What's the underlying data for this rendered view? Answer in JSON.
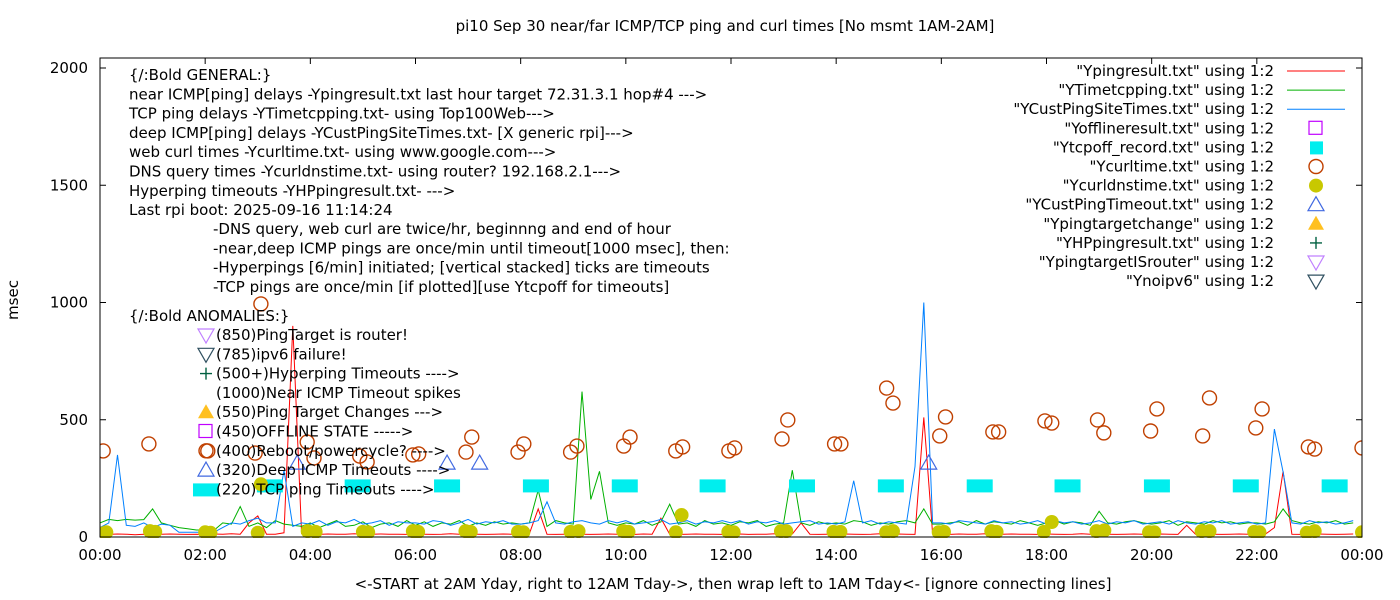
{
  "chart_data": {
    "type": "line",
    "title": "pi10 Sep 30  near/far ICMP/TCP ping and curl times [No msmt 1AM-2AM]",
    "xlabel": "<-START at 2AM Yday, right to 12AM Tday->, then wrap left to 1AM Tday<- [ignore connecting lines]",
    "ylabel": "msec",
    "xlim_hours": [
      0,
      24
    ],
    "ylim": [
      0,
      2000
    ],
    "x_tick_labels": [
      "00:00",
      "02:00",
      "04:00",
      "06:00",
      "08:00",
      "10:00",
      "12:00",
      "14:00",
      "16:00",
      "18:00",
      "20:00",
      "22:00",
      "00:00"
    ],
    "y_tick_labels": [
      "0",
      "500",
      "1000",
      "1500",
      "2000"
    ],
    "grid": false,
    "legend_placement": "top-right",
    "line_time_step_minutes": 10,
    "series": [
      {
        "name": "\"Ypingresult.txt\" using 1:2",
        "kind": "line",
        "color": "#ff0000",
        "values": [
          12,
          11,
          13,
          12,
          10,
          12,
          11,
          12,
          13,
          12,
          11,
          12,
          11,
          13,
          12,
          14,
          12,
          60,
          90,
          12,
          12,
          18,
          900,
          15,
          12,
          11,
          13,
          12,
          12,
          14,
          11,
          12,
          13,
          12,
          12,
          11,
          13,
          12,
          11,
          12,
          14,
          12,
          13,
          12,
          11,
          12,
          13,
          12,
          12,
          14,
          120,
          12,
          11,
          12,
          13,
          12,
          11,
          12,
          13,
          12,
          12,
          11,
          13,
          12,
          80,
          12,
          11,
          12,
          13,
          12,
          12,
          11,
          12,
          13,
          11,
          12,
          12,
          14,
          12,
          13,
          60,
          12,
          11,
          12,
          12,
          13,
          12,
          11,
          12,
          14,
          12,
          13,
          12,
          11,
          510,
          14,
          12,
          11,
          13,
          12,
          12,
          14,
          11,
          12,
          13,
          12,
          12,
          11,
          13,
          12,
          11,
          12,
          14,
          12,
          13,
          12,
          11,
          12,
          13,
          12,
          12,
          13,
          12,
          11,
          50,
          12,
          13,
          12,
          11,
          12,
          13,
          12,
          12,
          13,
          40,
          280,
          12,
          11,
          12,
          13,
          12,
          11,
          12,
          13
        ]
      },
      {
        "name": "\"YTimetcpping.txt\" using 1:2",
        "kind": "line",
        "color": "#00b000",
        "values": [
          60,
          75,
          70,
          75,
          72,
          74,
          120,
          60,
          50,
          40,
          35,
          30,
          30,
          28,
          60,
          55,
          130,
          45,
          60,
          40,
          70,
          55,
          50,
          45,
          60,
          40,
          55,
          70,
          45,
          50,
          65,
          40,
          55,
          60,
          45,
          70,
          50,
          65,
          45,
          60,
          55,
          70,
          45,
          60,
          50,
          65,
          55,
          60,
          55,
          60,
          200,
          45,
          70,
          60,
          55,
          620,
          160,
          280,
          60,
          50,
          60,
          55,
          70,
          50,
          65,
          140,
          55,
          60,
          45,
          70,
          55,
          60,
          50,
          65,
          60,
          70,
          45,
          55,
          60,
          285,
          60,
          50,
          65,
          55,
          60,
          55,
          70,
          65,
          50,
          60,
          55,
          65,
          70,
          60,
          120,
          55,
          55,
          60,
          65,
          50,
          70,
          55,
          65,
          60,
          55,
          70,
          60,
          50,
          60,
          70,
          55,
          65,
          60,
          50,
          110,
          60,
          55,
          65,
          70,
          60,
          55,
          60,
          70,
          50,
          65,
          60,
          55,
          70,
          60,
          65,
          55,
          60,
          60,
          55,
          65,
          120,
          70,
          60,
          55,
          65,
          60,
          70,
          55,
          60
        ]
      },
      {
        "name": "\"YCustPingSiteTimes.txt\" using 1:2",
        "kind": "line",
        "color": "#0080ff",
        "values": [
          40,
          60,
          350,
          50,
          45,
          60,
          40,
          55,
          50,
          20,
          20,
          20,
          20,
          20,
          40,
          60,
          55,
          70,
          80,
          60,
          60,
          285,
          45,
          60,
          55,
          70,
          50,
          65,
          60,
          75,
          55,
          60,
          70,
          50,
          65,
          60,
          60,
          55,
          70,
          65,
          50,
          60,
          75,
          55,
          65,
          60,
          70,
          55,
          55,
          60,
          70,
          150,
          60,
          55,
          65,
          70,
          60,
          55,
          70,
          60,
          70,
          55,
          60,
          65,
          75,
          55,
          60,
          70,
          55,
          65,
          60,
          70,
          60,
          70,
          55,
          65,
          60,
          70,
          55,
          60,
          65,
          70,
          55,
          60,
          55,
          65,
          240,
          60,
          70,
          55,
          65,
          60,
          55,
          300,
          1000,
          60,
          60,
          55,
          70,
          65,
          60,
          55,
          70,
          60,
          65,
          55,
          60,
          70,
          55,
          70,
          60,
          65,
          55,
          60,
          70,
          55,
          65,
          60,
          70,
          55,
          60,
          65,
          55,
          70,
          60,
          55,
          65,
          60,
          70,
          55,
          60,
          65,
          55,
          60,
          460,
          277,
          60,
          55,
          70,
          60,
          65,
          55,
          60,
          70
        ]
      },
      {
        "name": "\"Yofflineresult.txt\" using 1:2",
        "kind": "points",
        "marker": "open-square",
        "color": "#c000ff",
        "points": []
      },
      {
        "name": "\"Ytcpoff_record.txt\" using 1:2",
        "kind": "points",
        "marker": "filled-square",
        "color": "#00eeee",
        "points": [
          [
            3.23,
            220
          ],
          [
            4.9,
            220
          ],
          [
            6.6,
            220
          ],
          [
            8.29,
            220
          ],
          [
            9.98,
            220
          ],
          [
            11.65,
            220
          ],
          [
            13.35,
            220
          ],
          [
            15.04,
            220
          ],
          [
            16.73,
            220
          ],
          [
            18.4,
            220
          ],
          [
            20.1,
            220
          ],
          [
            21.79,
            220
          ],
          [
            23.48,
            220
          ]
        ]
      },
      {
        "name": "\"Ycurltime.txt\" using 1:2",
        "kind": "points",
        "marker": "open-circle",
        "color": "#c04000",
        "points": [
          [
            0.06,
            367
          ],
          [
            0.93,
            397
          ],
          [
            2.05,
            367
          ],
          [
            2.95,
            358
          ],
          [
            3.06,
            994
          ],
          [
            3.94,
            405
          ],
          [
            4.07,
            337
          ],
          [
            4.94,
            345
          ],
          [
            5.08,
            320
          ],
          [
            5.95,
            350
          ],
          [
            6.06,
            354
          ],
          [
            6.96,
            362
          ],
          [
            7.07,
            426
          ],
          [
            7.95,
            362
          ],
          [
            8.06,
            397
          ],
          [
            8.95,
            362
          ],
          [
            9.07,
            388
          ],
          [
            9.96,
            388
          ],
          [
            10.08,
            426
          ],
          [
            10.95,
            367
          ],
          [
            11.08,
            384
          ],
          [
            11.96,
            367
          ],
          [
            12.07,
            380
          ],
          [
            12.97,
            418
          ],
          [
            13.08,
            499
          ],
          [
            13.97,
            397
          ],
          [
            14.09,
            397
          ],
          [
            14.96,
            635
          ],
          [
            15.08,
            571
          ],
          [
            15.97,
            431
          ],
          [
            16.08,
            512
          ],
          [
            16.98,
            448
          ],
          [
            17.09,
            448
          ],
          [
            17.97,
            495
          ],
          [
            18.1,
            486
          ],
          [
            18.97,
            499
          ],
          [
            19.09,
            444
          ],
          [
            19.98,
            452
          ],
          [
            20.1,
            546
          ],
          [
            20.97,
            431
          ],
          [
            21.1,
            593
          ],
          [
            21.98,
            465
          ],
          [
            22.1,
            546
          ],
          [
            22.98,
            384
          ],
          [
            23.1,
            375
          ],
          [
            24.0,
            380
          ]
        ]
      },
      {
        "name": "\"Ycurldnstime.txt\" using 1:2",
        "kind": "points",
        "marker": "filled-circle",
        "color": "#c8c800",
        "points": [
          [
            0.05,
            15
          ],
          [
            0.12,
            20
          ],
          [
            0.95,
            25
          ],
          [
            1.05,
            22
          ],
          [
            2.0,
            20
          ],
          [
            2.1,
            18
          ],
          [
            3.0,
            18
          ],
          [
            3.06,
            225
          ],
          [
            3.95,
            25
          ],
          [
            4.1,
            22
          ],
          [
            5.0,
            22
          ],
          [
            5.1,
            20
          ],
          [
            5.95,
            25
          ],
          [
            6.05,
            22
          ],
          [
            6.95,
            25
          ],
          [
            7.05,
            22
          ],
          [
            7.95,
            22
          ],
          [
            8.05,
            20
          ],
          [
            8.95,
            22
          ],
          [
            9.1,
            25
          ],
          [
            9.95,
            25
          ],
          [
            10.05,
            22
          ],
          [
            10.95,
            20
          ],
          [
            11.06,
            94
          ],
          [
            11.95,
            22
          ],
          [
            12.05,
            20
          ],
          [
            12.95,
            25
          ],
          [
            13.05,
            25
          ],
          [
            13.95,
            22
          ],
          [
            14.08,
            22
          ],
          [
            14.95,
            20
          ],
          [
            15.08,
            25
          ],
          [
            15.95,
            20
          ],
          [
            16.05,
            22
          ],
          [
            16.95,
            25
          ],
          [
            17.05,
            22
          ],
          [
            17.95,
            22
          ],
          [
            18.1,
            64
          ],
          [
            18.95,
            25
          ],
          [
            19.1,
            28
          ],
          [
            19.95,
            20
          ],
          [
            20.05,
            20
          ],
          [
            20.95,
            25
          ],
          [
            21.1,
            25
          ],
          [
            21.95,
            22
          ],
          [
            22.05,
            20
          ],
          [
            22.95,
            18
          ],
          [
            23.1,
            25
          ],
          [
            24.0,
            20
          ]
        ]
      },
      {
        "name": "\"YCustPingTimeout.txt\" using 1:2",
        "kind": "points",
        "marker": "open-triangle-up",
        "color": "#4169e1",
        "points": [
          [
            3.75,
            315
          ],
          [
            6.6,
            315
          ],
          [
            7.22,
            315
          ],
          [
            15.76,
            315
          ]
        ]
      },
      {
        "name": "\"Ypingtargetchange\" using 1:2",
        "kind": "points",
        "marker": "filled-triangle-up",
        "color": "#ffc020",
        "points": []
      },
      {
        "name": "\"YHPpingresult.txt\" using 1:2",
        "kind": "points",
        "marker": "plus",
        "color": "#006040",
        "points": []
      },
      {
        "name": "\"YpingtargetISrouter\" using 1:2",
        "kind": "points",
        "marker": "open-triangle-down",
        "color": "#c080ff",
        "points": []
      },
      {
        "name": "\"Ynoipv6\" using 1:2",
        "kind": "points",
        "marker": "open-triangle-down",
        "color": "#305060",
        "points": []
      }
    ],
    "annotations": {
      "general": [
        "{/:Bold GENERAL:}",
        "near ICMP[ping] delays -Ypingresult.txt last hour target 72.31.3.1 hop#4 --->",
        "TCP ping delays -YTimetcpping.txt- using Top100Web--->",
        "deep ICMP[ping] delays -YCustPingSiteTimes.txt- [X generic rpi]--->",
        "web curl times -Ycurltime.txt- using www.google.com--->",
        "DNS query times -Ycurldnstime.txt- using router? 192.168.2.1--->",
        "Hyperping timeouts -YHPpingresult.txt- --->",
        "Last rpi boot: 2025-09-16 11:14:24"
      ],
      "notes": [
        "-DNS query, web curl are twice/hr, beginnng and end of hour",
        "-near,deep ICMP pings are once/min until timeout[1000 msec], then:",
        "  -Hyperpings [6/min] initiated; [vertical stacked] ticks are timeouts",
        "-TCP pings are once/min [if plotted][use Ytcpoff for timeouts]"
      ],
      "anomalies_title": "{/:Bold ANOMALIES:}",
      "anomalies": [
        {
          "label": "(850)PingTarget is router!",
          "marker": "open-triangle-down",
          "color": "#c080ff"
        },
        {
          "label": "(785)ipv6 failure!",
          "marker": "open-triangle-down",
          "color": "#305060"
        },
        {
          "label": "(500+)Hyperping Timeouts ---->",
          "marker": "plus",
          "color": "#006040"
        },
        {
          "label": "(1000)Near ICMP Timeout spikes",
          "marker": "none",
          "color": "#ff0000"
        },
        {
          "label": "(550)Ping Target Changes --->",
          "marker": "filled-triangle-up",
          "color": "#ffc020"
        },
        {
          "label": "(450)OFFLINE STATE ----->",
          "marker": "open-square",
          "color": "#c000ff"
        },
        {
          "label": "(400)Reboot/powercycle? ---->",
          "marker": "open-circle",
          "color": "#c04000"
        },
        {
          "label": "(320)Deep ICMP Timeouts ---->",
          "marker": "open-triangle-up",
          "color": "#4169e1"
        },
        {
          "label": "(220)TCP ping Timeouts ---->",
          "marker": "filled-square",
          "color": "#00eeee"
        }
      ]
    }
  }
}
